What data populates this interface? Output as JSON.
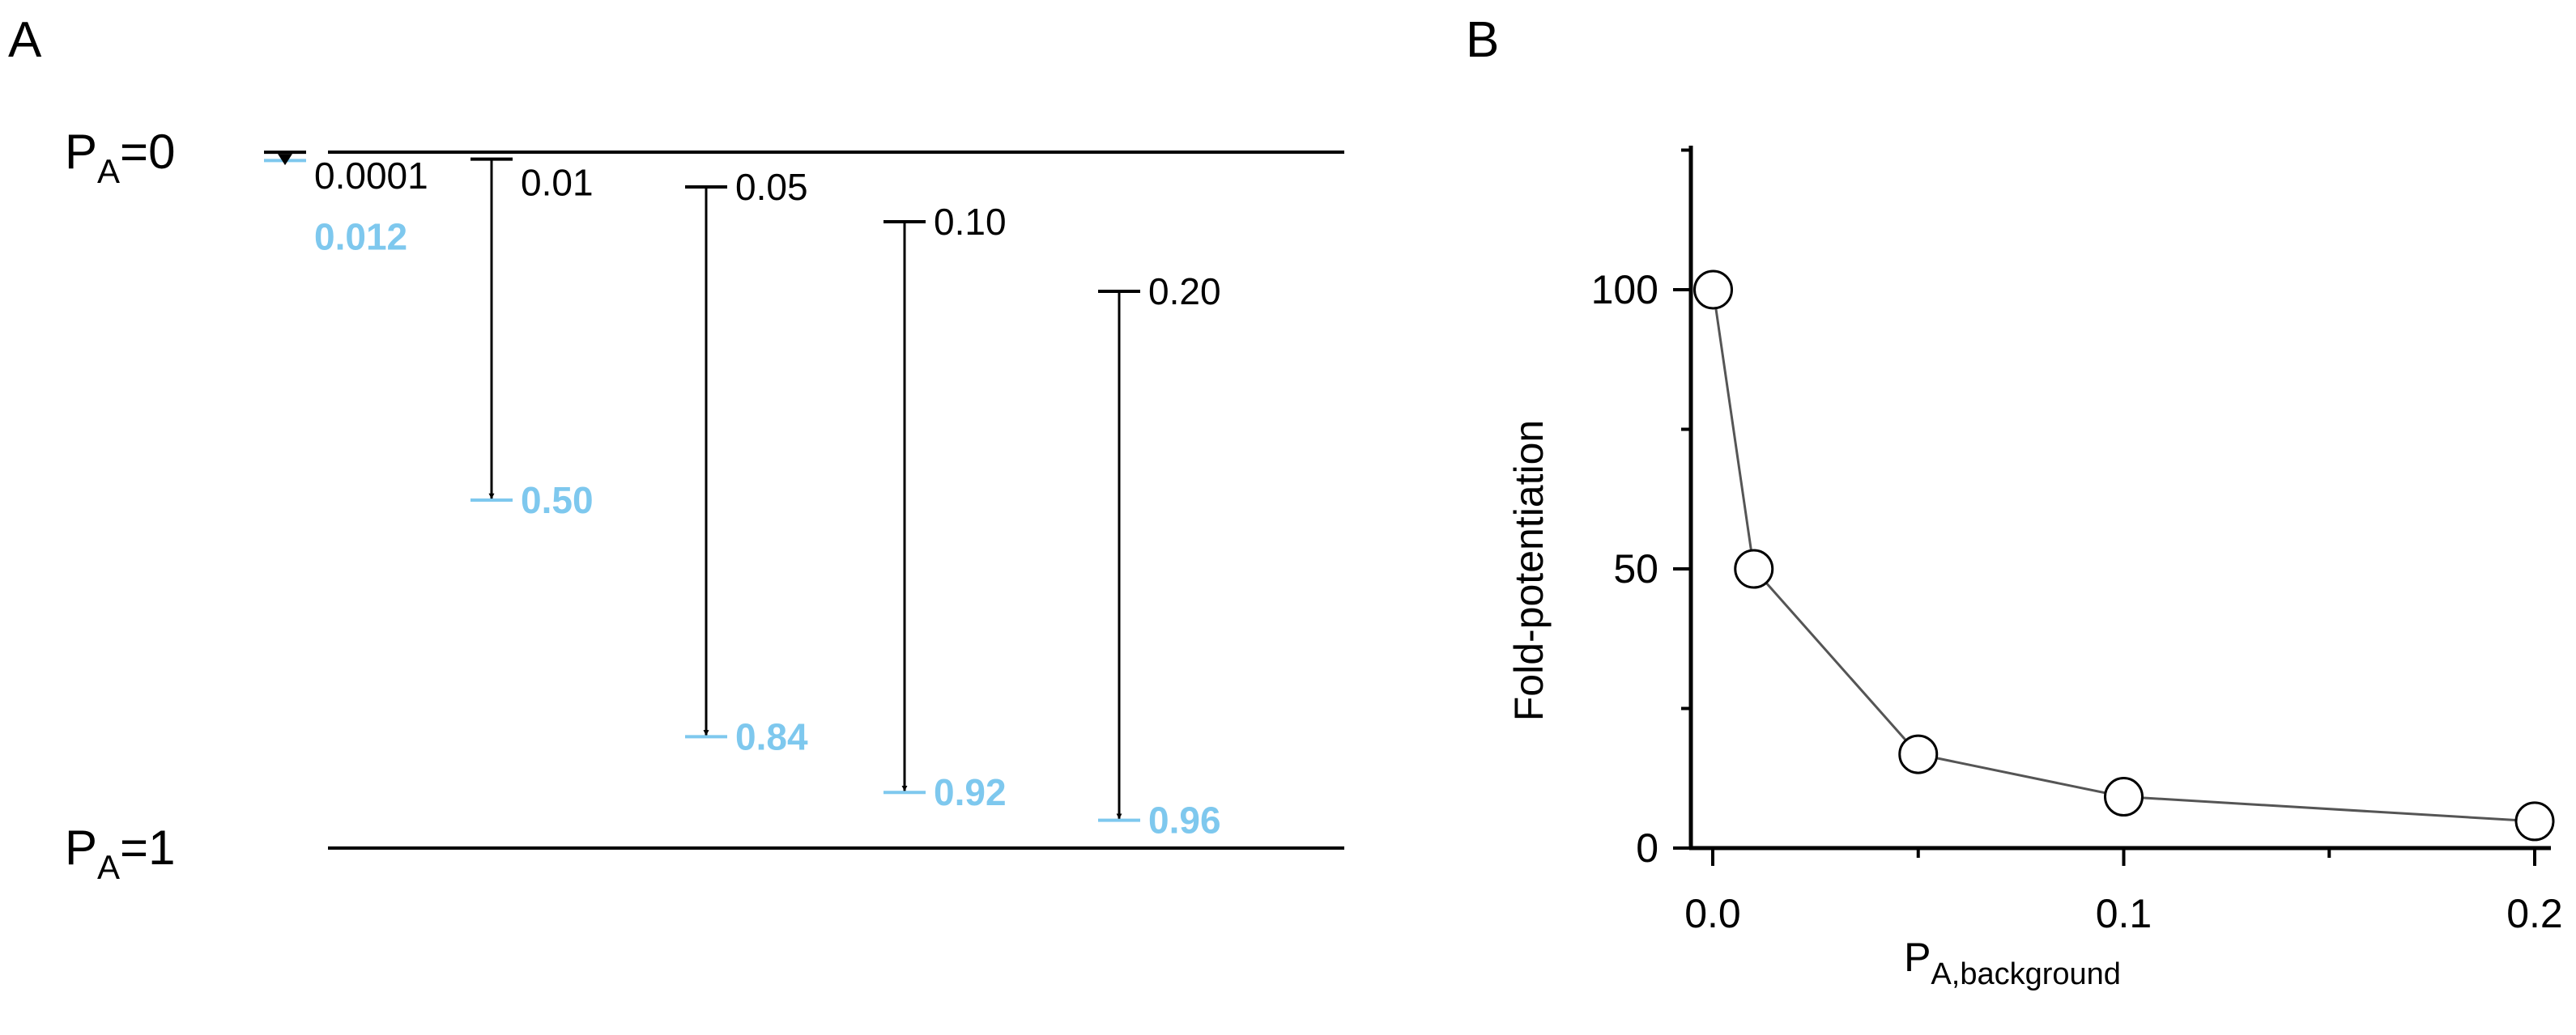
{
  "colors": {
    "ink": "#000000",
    "response": "#7ec8ee",
    "marker_fill": "#ffffff",
    "connector": "#555555"
  },
  "panel_a": {
    "label": "A",
    "top_bound": {
      "prefix": "P",
      "sub": "A",
      "suffix": "=0"
    },
    "bottom_bound": {
      "prefix": "P",
      "sub": "A",
      "suffix": "=1"
    },
    "transitions": [
      {
        "background": "0.0001",
        "response": "0.012",
        "from": 0.0001,
        "to": 0.012
      },
      {
        "background": "0.01",
        "response": "0.50",
        "from": 0.01,
        "to": 0.5
      },
      {
        "background": "0.05",
        "response": "0.84",
        "from": 0.05,
        "to": 0.84
      },
      {
        "background": "0.10",
        "response": "0.92",
        "from": 0.1,
        "to": 0.92
      },
      {
        "background": "0.20",
        "response": "0.96",
        "from": 0.2,
        "to": 0.96
      }
    ]
  },
  "chart_data": {
    "type": "line",
    "panel_label": "B",
    "title": "",
    "xlabel": {
      "prefix": "P",
      "sub": "A,background"
    },
    "ylabel": "Fold-potentiation",
    "xlim": [
      0.0,
      0.2
    ],
    "ylim": [
      0,
      120
    ],
    "x_ticks": [
      {
        "value": 0.0,
        "label": "0.0"
      },
      {
        "value": 0.1,
        "label": "0.1"
      },
      {
        "value": 0.2,
        "label": "0.2"
      }
    ],
    "x_minor_ticks": [
      0.05,
      0.15
    ],
    "y_ticks": [
      {
        "value": 0,
        "label": "0"
      },
      {
        "value": 50,
        "label": "50"
      },
      {
        "value": 100,
        "label": "100"
      }
    ],
    "y_minor_ticks": [
      25,
      75,
      125
    ],
    "series": [
      {
        "name": "Fold-potentiation",
        "x": [
          0.0001,
          0.01,
          0.05,
          0.1,
          0.2
        ],
        "y": [
          100,
          50,
          16.8,
          9.2,
          4.8
        ]
      }
    ]
  }
}
